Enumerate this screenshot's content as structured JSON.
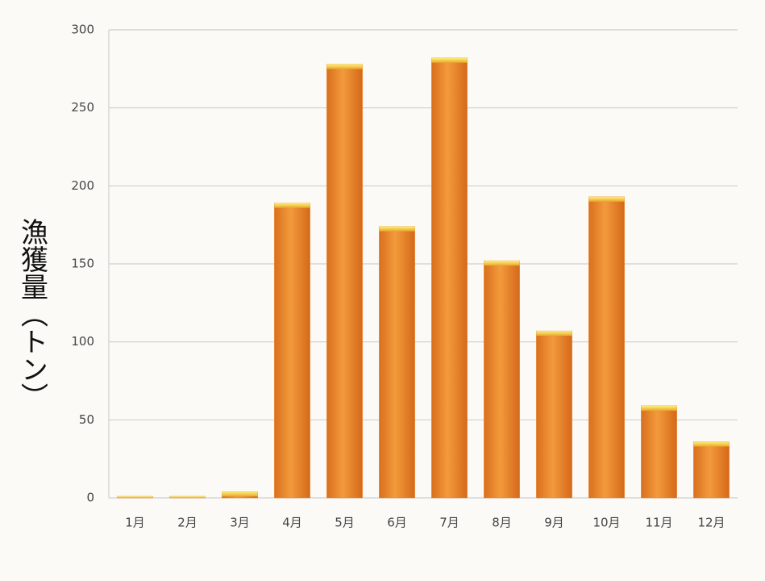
{
  "chart_data": {
    "type": "bar",
    "ylabel": "漁獲量（トン）",
    "categories": [
      "1月",
      "2月",
      "3月",
      "4月",
      "5月",
      "6月",
      "7月",
      "8月",
      "9月",
      "10月",
      "11月",
      "12月"
    ],
    "values": [
      1,
      1,
      4,
      189,
      278,
      174,
      282,
      152,
      107,
      193,
      59,
      36
    ],
    "color": "#e8832a",
    "ylim": [
      0,
      300
    ],
    "yticks": [
      0,
      50,
      100,
      150,
      200,
      250,
      300
    ],
    "grid": true
  }
}
